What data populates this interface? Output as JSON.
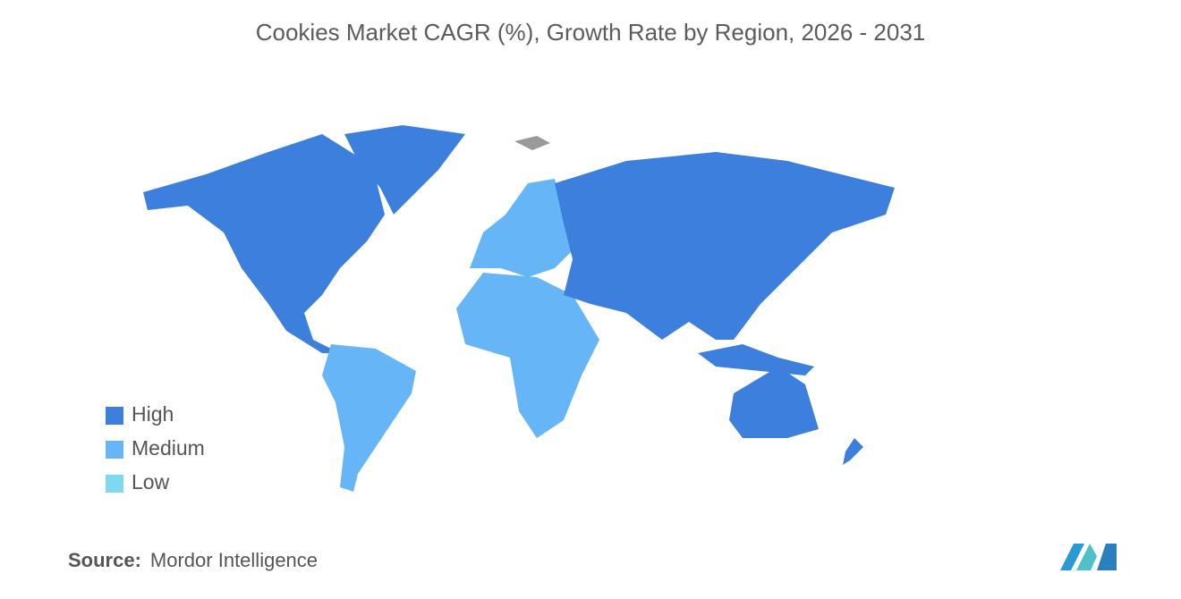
{
  "title": "Cookies Market CAGR (%), Growth Rate by Region, 2026 - 2031",
  "legend": [
    {
      "label": "High",
      "color": "#3c7fdc"
    },
    {
      "label": "Medium",
      "color": "#66b6f7"
    },
    {
      "label": "Low",
      "color": "#7fd9ee"
    }
  ],
  "source": {
    "label": "Source:",
    "text": "Mordor Intelligence"
  }
}
